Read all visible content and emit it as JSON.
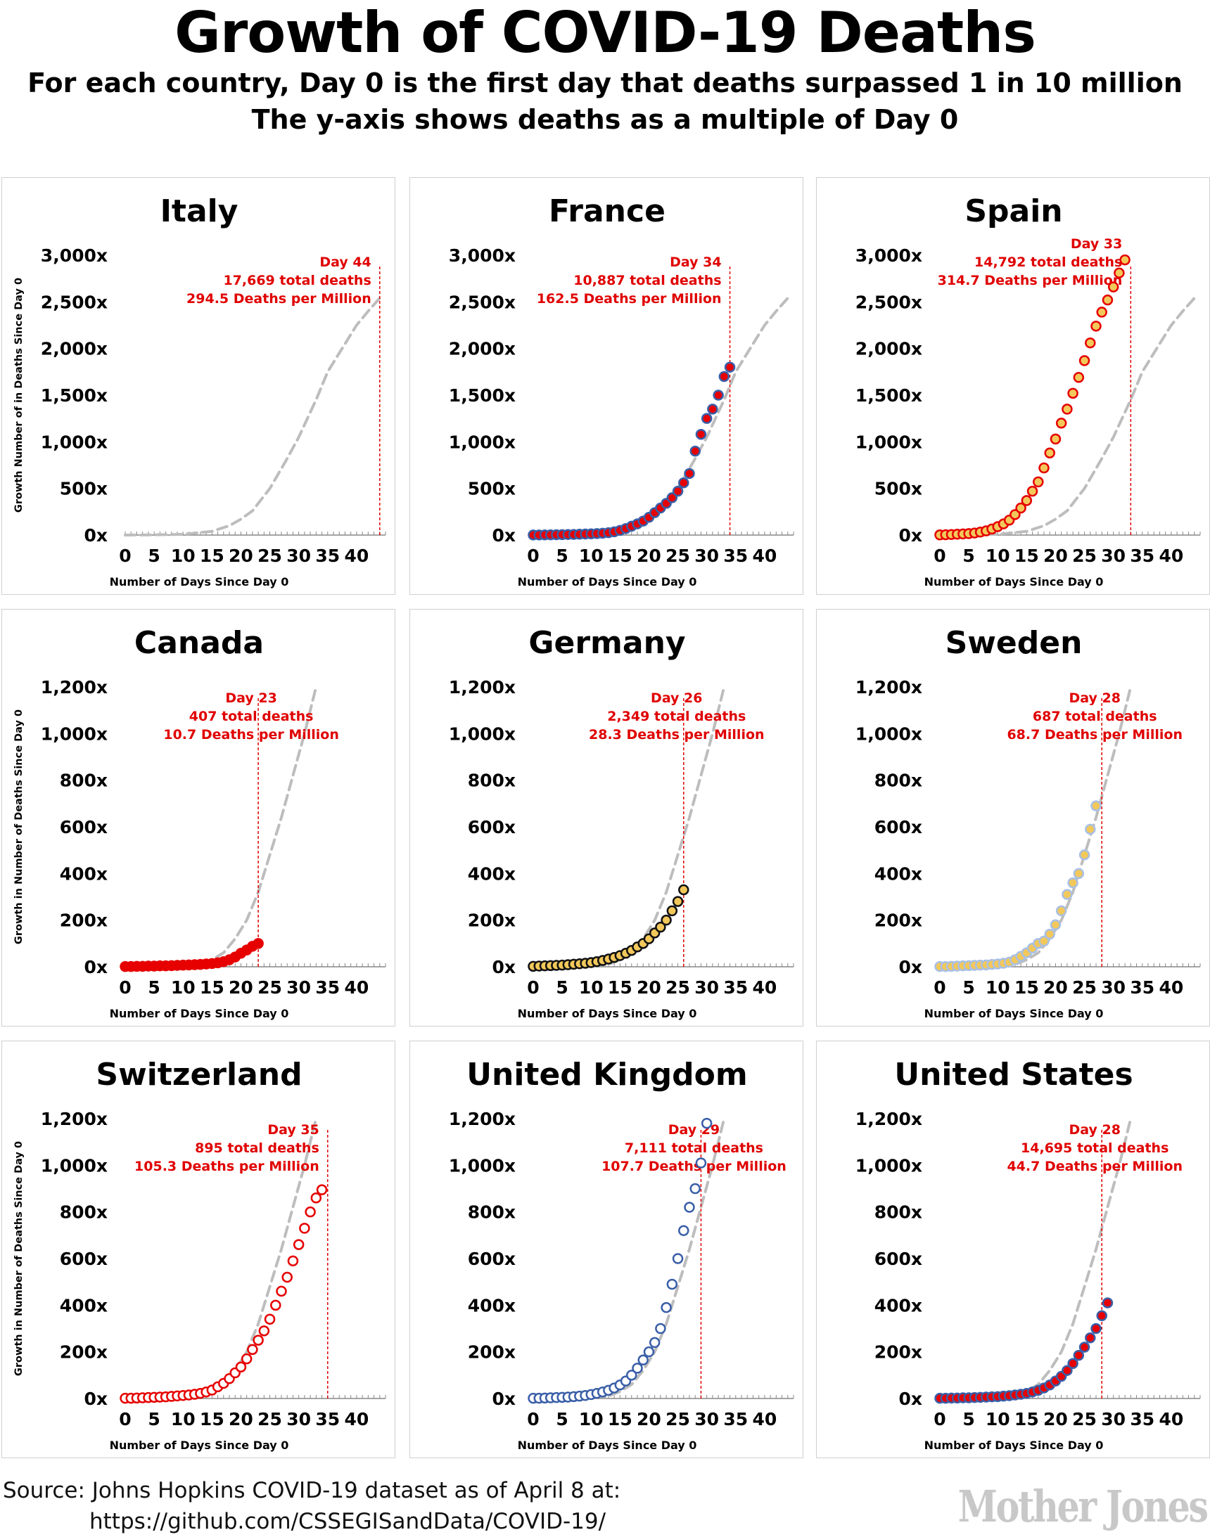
{
  "title": "Growth of COVID-19 Deaths",
  "subtitle_1": "For each country, Day 0 is the first day that deaths surpassed 1 in 10 million",
  "subtitle_2": "The y-axis shows deaths as a multiple of Day 0",
  "source_line_1": "Source: Johns Hopkins COVID-19 dataset as of April 8 at:",
  "source_line_2": "https://github.com/CSSEGISandData/COVID-19/",
  "logo": "Mother Jones",
  "colors": {
    "marker_line": "#e00000",
    "reference": "#bdbdbd",
    "red": "#e60000",
    "blue": "#3a5fa8",
    "gold": "#f2c85b",
    "lightblue": "#a9c0e4"
  },
  "chart_data": [
    {
      "type": "scatter",
      "title": "Italy",
      "xlabel": "Number of Days Since Day 0",
      "ylabel": "Growth Number of in Deaths Since Day 0",
      "xlim": [
        0,
        45
      ],
      "ylim": [
        0,
        3000
      ],
      "xticks": [
        0,
        5,
        10,
        15,
        20,
        25,
        30,
        35,
        40
      ],
      "yticks": [
        0,
        500,
        1000,
        1500,
        2000,
        2500,
        3000
      ],
      "ytick_labels": [
        "0x",
        "500x",
        "1,000x",
        "1,500x",
        "2,000x",
        "2,500x",
        "3,000x"
      ],
      "annotation": {
        "day": 44,
        "lines": [
          "Day 44",
          "17,669 total deaths",
          "294.5 Deaths per Million"
        ]
      },
      "marker": {
        "fill": "none",
        "stroke": "none"
      },
      "reference": {
        "x": [
          0,
          5,
          10,
          15,
          18,
          20,
          22,
          25,
          28,
          30,
          33,
          35,
          38,
          40,
          42,
          44
        ],
        "y": [
          0,
          2,
          8,
          40,
          100,
          170,
          260,
          500,
          820,
          1050,
          1450,
          1750,
          2050,
          2250,
          2400,
          2540
        ]
      },
      "series": []
    },
    {
      "type": "scatter",
      "title": "France",
      "xlabel": "Number of Days Since Day 0",
      "ylabel": "",
      "xlim": [
        0,
        45
      ],
      "ylim": [
        0,
        3000
      ],
      "xticks": [
        0,
        5,
        10,
        15,
        20,
        25,
        30,
        35,
        40
      ],
      "yticks": [
        0,
        500,
        1000,
        1500,
        2000,
        2500,
        3000
      ],
      "ytick_labels": [
        "0x",
        "500x",
        "1,000x",
        "1,500x",
        "2,000x",
        "2,500x",
        "3,000x"
      ],
      "annotation": {
        "day": 34,
        "lines": [
          "Day 34",
          "10,887 total deaths",
          "162.5 Deaths per Million"
        ]
      },
      "marker": {
        "fill": "#e60000",
        "stroke": "#3a5fa8"
      },
      "reference": {
        "x": [
          0,
          5,
          10,
          15,
          18,
          20,
          22,
          25,
          28,
          30,
          33,
          35,
          38,
          40,
          42,
          44
        ],
        "y": [
          0,
          2,
          8,
          40,
          100,
          170,
          260,
          500,
          820,
          1050,
          1450,
          1750,
          2050,
          2250,
          2400,
          2540
        ]
      },
      "series": [
        {
          "y": [
            1,
            1,
            2,
            3,
            4,
            5,
            6,
            7,
            9,
            11,
            13,
            16,
            20,
            25,
            35,
            50,
            70,
            95,
            120,
            150,
            190,
            240,
            290,
            340,
            400,
            470,
            560,
            660,
            900,
            1080,
            1250,
            1350,
            1500,
            1700,
            1800
          ]
        }
      ]
    },
    {
      "type": "scatter",
      "title": "Spain",
      "xlabel": "Number of Days Since Day 0",
      "ylabel": "",
      "xlim": [
        0,
        45
      ],
      "ylim": [
        0,
        3000
      ],
      "xticks": [
        0,
        5,
        10,
        15,
        20,
        25,
        30,
        35,
        40
      ],
      "yticks": [
        0,
        500,
        1000,
        1500,
        2000,
        2500,
        3000
      ],
      "ytick_labels": [
        "0x",
        "500x",
        "1,000x",
        "1,500x",
        "2,000x",
        "2,500x",
        "3,000x"
      ],
      "annotation": {
        "day": 33,
        "lines": [
          "Day 33",
          "14,792 total deaths",
          "314.7 Deaths per Million"
        ]
      },
      "marker": {
        "fill": "#f2c85b",
        "stroke": "#e60000"
      },
      "reference": {
        "x": [
          0,
          5,
          10,
          15,
          18,
          20,
          22,
          25,
          28,
          30,
          33,
          35,
          38,
          40,
          42,
          44
        ],
        "y": [
          0,
          2,
          8,
          40,
          100,
          170,
          260,
          500,
          820,
          1050,
          1450,
          1750,
          2050,
          2250,
          2400,
          2540
        ]
      },
      "series": [
        {
          "y": [
            2,
            4,
            6,
            9,
            12,
            16,
            22,
            32,
            45,
            65,
            90,
            120,
            160,
            220,
            290,
            370,
            470,
            570,
            720,
            880,
            1030,
            1200,
            1350,
            1520,
            1690,
            1870,
            2060,
            2240,
            2390,
            2520,
            2660,
            2810,
            2950
          ]
        }
      ]
    },
    {
      "type": "scatter",
      "title": "Canada",
      "xlabel": "Number of Days Since Day 0",
      "ylabel": "Growth in Number of Deaths Since Day 0",
      "xlim": [
        0,
        45
      ],
      "ylim": [
        0,
        1200
      ],
      "xticks": [
        0,
        5,
        10,
        15,
        20,
        25,
        30,
        35,
        40
      ],
      "yticks": [
        0,
        200,
        400,
        600,
        800,
        1000,
        1200
      ],
      "ytick_labels": [
        "0x",
        "200x",
        "400x",
        "600x",
        "800x",
        "1,000x",
        "1,200x"
      ],
      "annotation": {
        "day": 23,
        "lines": [
          "Day 23",
          "407 total deaths",
          "10.7 Deaths per Million"
        ]
      },
      "marker": {
        "fill": "#e60000",
        "stroke": "#e60000"
      },
      "reference": {
        "x": [
          0,
          5,
          10,
          13,
          15,
          17,
          19,
          21,
          23,
          25,
          27,
          29,
          31,
          33
        ],
        "y": [
          0,
          1,
          4,
          10,
          30,
          60,
          120,
          200,
          320,
          480,
          640,
          820,
          1000,
          1200
        ]
      },
      "series": [
        {
          "y": [
            1,
            1,
            2,
            2,
            3,
            3,
            4,
            4,
            5,
            6,
            7,
            8,
            9,
            10,
            12,
            14,
            17,
            22,
            30,
            42,
            58,
            72,
            88,
            100
          ]
        }
      ]
    },
    {
      "type": "scatter",
      "title": "Germany",
      "xlabel": "Number of Days Since Day 0",
      "ylabel": "",
      "xlim": [
        0,
        45
      ],
      "ylim": [
        0,
        1200
      ],
      "xticks": [
        0,
        5,
        10,
        15,
        20,
        25,
        30,
        35,
        40
      ],
      "yticks": [
        0,
        200,
        400,
        600,
        800,
        1000,
        1200
      ],
      "ytick_labels": [
        "0x",
        "200x",
        "400x",
        "600x",
        "800x",
        "1,000x",
        "1,200x"
      ],
      "annotation": {
        "day": 26,
        "lines": [
          "Day 26",
          "2,349 total deaths",
          "28.3 Deaths per Million"
        ]
      },
      "marker": {
        "fill": "#f2c85b",
        "stroke": "#111111"
      },
      "reference": {
        "x": [
          0,
          5,
          10,
          13,
          15,
          17,
          19,
          21,
          23,
          25,
          27,
          29,
          31,
          33
        ],
        "y": [
          0,
          1,
          4,
          10,
          30,
          60,
          120,
          200,
          320,
          480,
          640,
          820,
          1000,
          1200
        ]
      },
      "series": [
        {
          "y": [
            2,
            3,
            4,
            5,
            6,
            7,
            9,
            11,
            13,
            15,
            18,
            22,
            27,
            33,
            40,
            48,
            58,
            70,
            85,
            100,
            120,
            145,
            170,
            200,
            240,
            280,
            330
          ]
        }
      ]
    },
    {
      "type": "scatter",
      "title": "Sweden",
      "xlabel": "Number of Days Since Day 0",
      "ylabel": "",
      "xlim": [
        0,
        45
      ],
      "ylim": [
        0,
        1200
      ],
      "xticks": [
        0,
        5,
        10,
        15,
        20,
        25,
        30,
        35,
        40
      ],
      "yticks": [
        0,
        200,
        400,
        600,
        800,
        1000,
        1200
      ],
      "ytick_labels": [
        "0x",
        "200x",
        "400x",
        "600x",
        "800x",
        "1,000x",
        "1,200x"
      ],
      "annotation": {
        "day": 28,
        "lines": [
          "Day 28",
          "687 total deaths",
          "68.7 Deaths per Million"
        ]
      },
      "marker": {
        "fill": "#f2c85b",
        "stroke": "#a9c0e4"
      },
      "reference": {
        "x": [
          0,
          5,
          10,
          13,
          15,
          17,
          19,
          21,
          23,
          25,
          27,
          29,
          31,
          33
        ],
        "y": [
          0,
          1,
          4,
          10,
          30,
          60,
          120,
          200,
          320,
          480,
          640,
          820,
          1000,
          1200
        ]
      },
      "series": [
        {
          "y": [
            1,
            1,
            2,
            3,
            4,
            5,
            6,
            7,
            8,
            10,
            12,
            15,
            20,
            30,
            45,
            60,
            80,
            100,
            110,
            140,
            180,
            240,
            310,
            360,
            400,
            480,
            590,
            690
          ]
        }
      ]
    },
    {
      "type": "scatter",
      "title": "Switzerland",
      "xlabel": "Number of Days Since Day 0",
      "ylabel": "Growth in Number of Deaths Since Day 0",
      "xlim": [
        0,
        45
      ],
      "ylim": [
        0,
        1200
      ],
      "xticks": [
        0,
        5,
        10,
        15,
        20,
        25,
        30,
        35,
        40
      ],
      "yticks": [
        0,
        200,
        400,
        600,
        800,
        1000,
        1200
      ],
      "ytick_labels": [
        "0x",
        "200x",
        "400x",
        "600x",
        "800x",
        "1,000x",
        "1,200x"
      ],
      "annotation": {
        "day": 35,
        "lines": [
          "Day 35",
          "895 total deaths",
          "105.3 Deaths per Million"
        ]
      },
      "marker": {
        "fill": "#ffffff",
        "stroke": "#e60000"
      },
      "reference": {
        "x": [
          0,
          5,
          10,
          13,
          15,
          17,
          19,
          21,
          23,
          25,
          27,
          29,
          31,
          33
        ],
        "y": [
          0,
          1,
          4,
          10,
          30,
          60,
          120,
          200,
          320,
          480,
          640,
          820,
          1000,
          1200
        ]
      },
      "series": [
        {
          "y": [
            1,
            1,
            2,
            3,
            4,
            5,
            6,
            7,
            9,
            11,
            13,
            15,
            18,
            22,
            28,
            36,
            50,
            65,
            85,
            110,
            135,
            170,
            210,
            250,
            290,
            340,
            400,
            460,
            520,
            590,
            660,
            730,
            800,
            860,
            895
          ]
        }
      ]
    },
    {
      "type": "scatter",
      "title": "United Kingdom",
      "xlabel": "Number of Days Since Day 0",
      "ylabel": "",
      "xlim": [
        0,
        45
      ],
      "ylim": [
        0,
        1200
      ],
      "xticks": [
        0,
        5,
        10,
        15,
        20,
        25,
        30,
        35,
        40
      ],
      "yticks": [
        0,
        200,
        400,
        600,
        800,
        1000,
        1200
      ],
      "ytick_labels": [
        "0x",
        "200x",
        "400x",
        "600x",
        "800x",
        "1,000x",
        "1,200x"
      ],
      "annotation": {
        "day": 29,
        "lines": [
          "Day 29",
          "7,111 total deaths",
          "107.7 Deaths per Million"
        ]
      },
      "marker": {
        "fill": "#ffffff",
        "stroke": "#3a5fa8"
      },
      "reference": {
        "x": [
          0,
          5,
          10,
          13,
          15,
          17,
          19,
          21,
          23,
          25,
          27,
          29,
          31,
          33
        ],
        "y": [
          0,
          1,
          4,
          10,
          30,
          60,
          120,
          200,
          320,
          480,
          640,
          820,
          1000,
          1200
        ]
      },
      "series": [
        {
          "y": [
            1,
            1,
            2,
            3,
            4,
            5,
            6,
            8,
            10,
            13,
            17,
            22,
            28,
            35,
            45,
            58,
            75,
            100,
            130,
            165,
            200,
            240,
            300,
            390,
            490,
            600,
            720,
            820,
            900,
            1010,
            1180
          ]
        }
      ]
    },
    {
      "type": "scatter",
      "title": "United States",
      "xlabel": "Number of Days Since Day 0",
      "ylabel": "",
      "xlim": [
        0,
        45
      ],
      "ylim": [
        0,
        1200
      ],
      "xticks": [
        0,
        5,
        10,
        15,
        20,
        25,
        30,
        35,
        40
      ],
      "yticks": [
        0,
        200,
        400,
        600,
        800,
        1000,
        1200
      ],
      "ytick_labels": [
        "0x",
        "200x",
        "400x",
        "600x",
        "800x",
        "1,000x",
        "1,200x"
      ],
      "annotation": {
        "day": 28,
        "lines": [
          "Day 28",
          "14,695 total deaths",
          "44.7 Deaths per Million"
        ]
      },
      "marker": {
        "fill": "#e60000",
        "stroke": "#3a5fa8"
      },
      "reference": {
        "x": [
          0,
          5,
          10,
          13,
          15,
          17,
          19,
          21,
          23,
          25,
          27,
          29,
          31,
          33
        ],
        "y": [
          0,
          1,
          4,
          10,
          30,
          60,
          120,
          200,
          320,
          480,
          640,
          820,
          1000,
          1200
        ]
      },
      "series": [
        {
          "y": [
            1,
            1,
            2,
            2,
            3,
            3,
            4,
            5,
            6,
            7,
            8,
            10,
            12,
            15,
            18,
            22,
            28,
            35,
            45,
            58,
            75,
            95,
            120,
            150,
            185,
            220,
            260,
            300,
            355,
            410
          ]
        }
      ]
    }
  ]
}
